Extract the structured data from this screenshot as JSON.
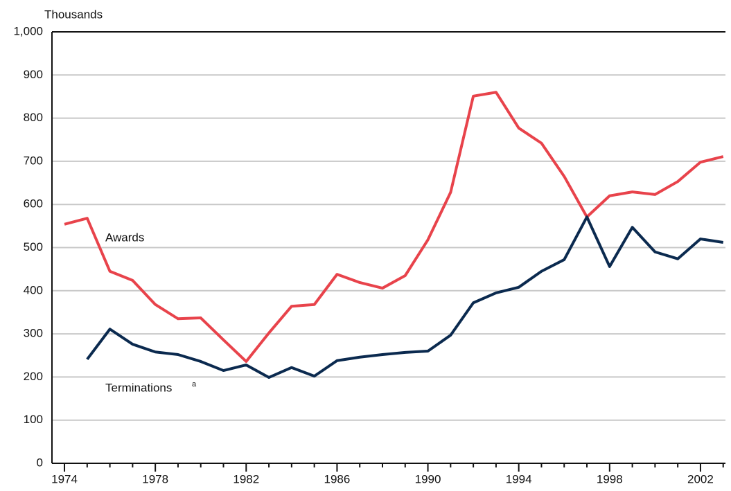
{
  "chart_data": {
    "type": "line",
    "y_axis_label": "Thousands",
    "x": [
      1974,
      1975,
      1976,
      1977,
      1978,
      1979,
      1980,
      1981,
      1982,
      1983,
      1984,
      1985,
      1986,
      1987,
      1988,
      1989,
      1990,
      1991,
      1992,
      1993,
      1994,
      1995,
      1996,
      1997,
      1998,
      1999,
      2000,
      2001,
      2002,
      2003
    ],
    "series": [
      {
        "name": "Awards",
        "color": "#e8434b",
        "values": [
          554,
          568,
          445,
          424,
          368,
          335,
          337,
          286,
          236,
          302,
          364,
          368,
          438,
          419,
          406,
          435,
          518,
          628,
          851,
          860,
          777,
          742,
          665,
          571,
          620,
          629,
          623,
          653,
          698,
          711
        ]
      },
      {
        "name": "Terminations",
        "footnote_marker": "a",
        "color": "#0b2a4f",
        "values": [
          null,
          241,
          311,
          276,
          258,
          252,
          236,
          215,
          228,
          199,
          222,
          202,
          238,
          246,
          252,
          257,
          260,
          297,
          372,
          395,
          408,
          445,
          472,
          571,
          456,
          547,
          490,
          474,
          520,
          512
        ]
      }
    ],
    "xlim": [
      1973.45,
      2003.1
    ],
    "xticks": [
      1974,
      1978,
      1982,
      1986,
      1990,
      1994,
      1998,
      2002
    ],
    "xminor_ticks": [
      1975,
      1976,
      1977,
      1979,
      1980,
      1981,
      1983,
      1984,
      1985,
      1987,
      1988,
      1989,
      1991,
      1992,
      1993,
      1995,
      1996,
      1997,
      1999,
      2000,
      2001,
      2003
    ],
    "ylim": [
      0,
      1000
    ],
    "yticks": [
      0,
      100,
      200,
      300,
      400,
      500,
      600,
      700,
      800,
      900,
      {
        "value": 1000,
        "label": "1,000"
      }
    ],
    "grid": true
  }
}
